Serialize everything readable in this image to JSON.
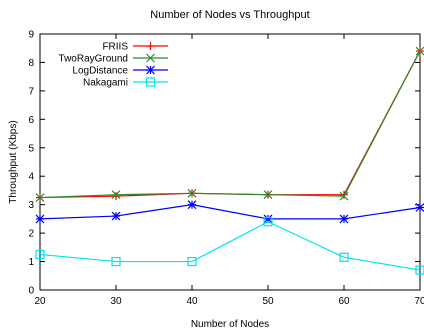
{
  "chart_data": {
    "type": "line",
    "title": "Number of Nodes vs Throughput",
    "xlabel": "Number of Nodes",
    "ylabel": "Throughput (Kbps)",
    "xlim": [
      20,
      70
    ],
    "ylim": [
      0,
      9
    ],
    "x": [
      20,
      30,
      40,
      50,
      60,
      70
    ],
    "xticks": [
      "20",
      "30",
      "40",
      "50",
      "60",
      "70"
    ],
    "yticks": [
      "0",
      "1",
      "2",
      "3",
      "4",
      "5",
      "6",
      "7",
      "8",
      "9"
    ],
    "legend_position": "top-left",
    "grid": false,
    "series": [
      {
        "name": "FRIIS",
        "color": "#ff0000",
        "marker": "plus",
        "values": [
          3.25,
          3.3,
          3.4,
          3.35,
          3.35,
          8.4
        ]
      },
      {
        "name": "TwoRayGround",
        "color": "#2e8b2e",
        "marker": "x",
        "values": [
          3.25,
          3.35,
          3.4,
          3.35,
          3.3,
          8.4
        ]
      },
      {
        "name": "LogDistance",
        "color": "#0000ff",
        "marker": "star",
        "values": [
          2.5,
          2.6,
          3.0,
          2.5,
          2.5,
          2.9
        ]
      },
      {
        "name": "Nakagami",
        "color": "#00e5ee",
        "marker": "square",
        "values": [
          1.25,
          1.0,
          1.0,
          2.4,
          1.15,
          0.7
        ]
      }
    ]
  }
}
